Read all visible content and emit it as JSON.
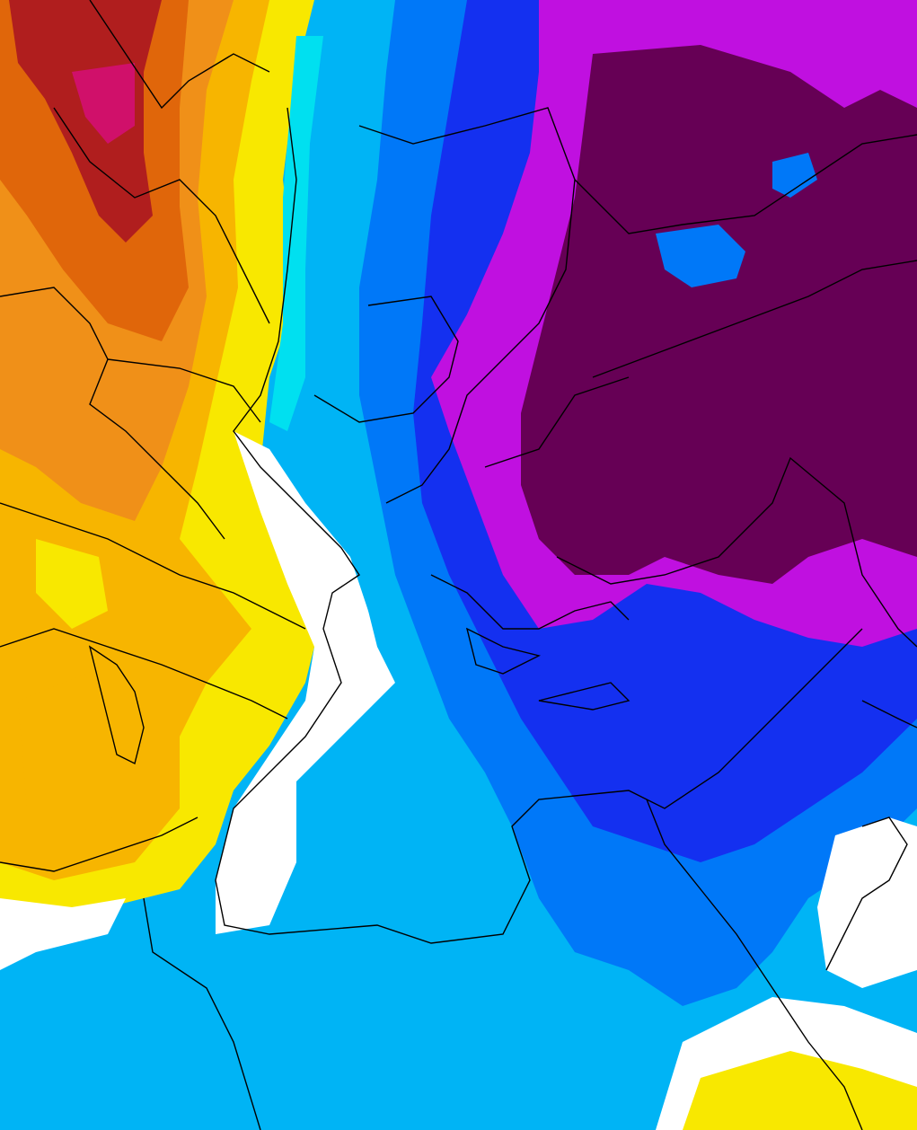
{
  "map": {
    "kind": "temperature-anomaly-shading",
    "palette": {
      "deep_red": "#b01e1e",
      "magenta_core": "#d0106a",
      "dark_orange": "#e0660a",
      "orange": "#f09018",
      "gold": "#f7b500",
      "yellow": "#f8e800",
      "white": "#ffffff",
      "cyan": "#00e0f0",
      "sky_blue": "#00b4f5",
      "blue": "#0078f8",
      "deep_blue": "#1430f0",
      "violet": "#c010e0",
      "dark_purple": "#660055",
      "border_line": "#000000"
    },
    "legend": []
  }
}
